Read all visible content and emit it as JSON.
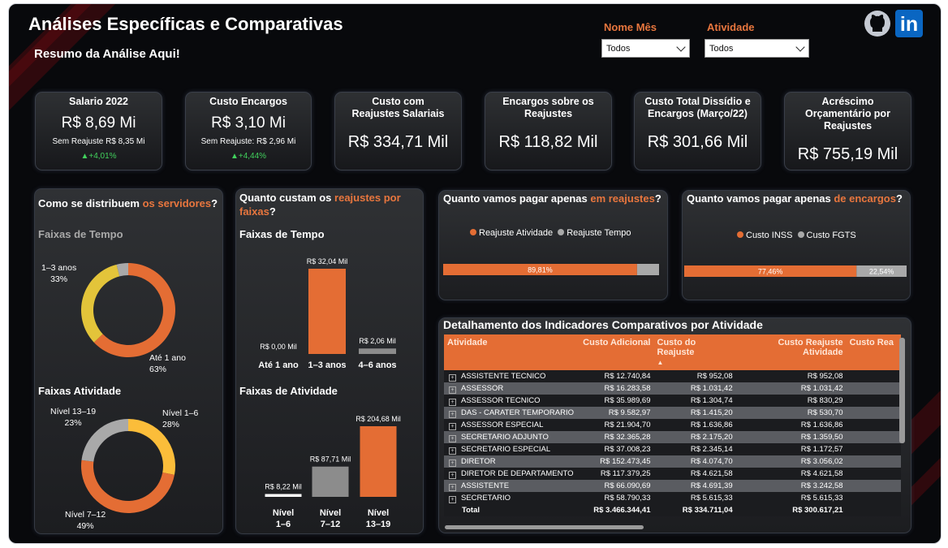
{
  "title": "Análises Específicas e Comparativas",
  "subtitle": "Resumo da Análise Aqui!",
  "filters": [
    {
      "label": "Nome Mês",
      "value": "Todos"
    },
    {
      "label": "Atividade",
      "value": "Todos"
    }
  ],
  "social": {
    "github_icon": "github-icon",
    "linkedin_icon": "linkedin-icon",
    "linkedin_text": "in"
  },
  "colors": {
    "accent": "#e8763e",
    "bar": "#e46d34",
    "grey": "#a9a9a9",
    "positive": "#41d05c"
  },
  "cards": [
    {
      "title": "Salario 2022",
      "value": "R$ 8,69 Mi",
      "sub": "Sem Reajuste R$ 8,35 Mi",
      "delta": "▲+4,01%"
    },
    {
      "title": "Custo Encargos",
      "value": "R$ 3,10 Mi",
      "sub": "Sem Reajuste: R$ 2,96 Mi",
      "delta": "▲+4,44%"
    },
    {
      "title": "Custo com Reajustes Salariais",
      "value": "R$ 334,71 Mil"
    },
    {
      "title": "Encargos sobre os Reajustes",
      "value": "R$ 118,82 Mil"
    },
    {
      "title": "Custo Total Dissídio e Encargos (Março/22)",
      "value": "R$ 301,66 Mil"
    },
    {
      "title": "Acréscimo Orçamentário por Reajustes",
      "value": "R$ 755,19 Mil"
    }
  ],
  "panel1": {
    "head1": "Como se distribuem ",
    "head2": "os servidores",
    "head3": "?",
    "sec1": "Faixas de Tempo",
    "sec2": "Faixas Atividade"
  },
  "panel2": {
    "head1": "Quanto custam os ",
    "head2": "reajustes por",
    "head3": "faixas",
    "head4": "?",
    "sec1": "Faixas de Tempo",
    "sec2": "Faixas de Atividade"
  },
  "panel3": {
    "head1": "Quanto vamos pagar apenas ",
    "head2": "em reajustes",
    "head3": "?",
    "legend": [
      "Reajuste Atividade",
      "Reajuste Tempo"
    ]
  },
  "panel4": {
    "head1": "Quanto vamos pagar apenas ",
    "head2": "de encargos",
    "head3": "?",
    "legend": [
      "Custo INSS",
      "Custo FGTS"
    ]
  },
  "chart_data": [
    {
      "type": "pie",
      "title": "Faixas de Tempo",
      "categories": [
        "Até 1 ano",
        "1–3 anos",
        "4–6 anos"
      ],
      "values": [
        63,
        33,
        4
      ],
      "value_labels": [
        "63%",
        "33%",
        ""
      ],
      "colors": [
        "#e46d34",
        "#e3c43a",
        "#a9a9a9"
      ]
    },
    {
      "type": "pie",
      "title": "Faixas Atividade",
      "categories": [
        "Nível 1–6",
        "Nível 7–12",
        "Nível 13–19"
      ],
      "values": [
        28,
        49,
        23
      ],
      "value_labels": [
        "28%",
        "49%",
        "23%"
      ],
      "colors": [
        "#fbbd3a",
        "#e46d34",
        "#a9a9a9"
      ]
    },
    {
      "type": "bar",
      "title": "Faixas de Tempo",
      "categories": [
        "Até 1 ano",
        "1–3 anos",
        "4–6 anos"
      ],
      "values": [
        0.0,
        32.04,
        2.06
      ],
      "value_labels": [
        "R$ 0,00 Mil",
        "R$ 32,04 Mil",
        "R$ 2,06 Mil"
      ],
      "colors": [
        "#e46d34",
        "#e46d34",
        "#8c8c8c"
      ]
    },
    {
      "type": "bar",
      "title": "Faixas de Atividade",
      "categories": [
        "Nível 1–6",
        "Nível 7–12",
        "Nível 13–19"
      ],
      "values": [
        8.22,
        87.71,
        204.68
      ],
      "value_labels": [
        "R$ 8,22 Mil",
        "R$ 87,71 Mil",
        "R$ 204,68 Mil"
      ],
      "colors": [
        "#ffffff",
        "#8c8c8c",
        "#e46d34"
      ]
    },
    {
      "type": "bar",
      "title": "",
      "categories": [
        "Reajuste Atividade",
        "Reajuste Tempo"
      ],
      "values": [
        89.81,
        10.19
      ],
      "value_labels": [
        "89,81%",
        ""
      ],
      "colors": [
        "#e46d34",
        "#a9a9a9"
      ]
    },
    {
      "type": "bar",
      "title": "",
      "categories": [
        "Custo INSS",
        "Custo FGTS"
      ],
      "values": [
        77.46,
        22.54
      ],
      "value_labels": [
        "77,46%",
        "22,54%"
      ],
      "colors": [
        "#e46d34",
        "#a9a9a9"
      ]
    }
  ],
  "table": {
    "title": "Detalhamento dos Indicadores Comparativos por Atividade",
    "columns": [
      "Atividade",
      "Custo Adicional",
      "Custo do Reajuste",
      "Custo Reajuste Atividade",
      "Custo Rea"
    ],
    "rows": [
      [
        "ASSISTENTE TECNICO",
        "R$ 12.740,84",
        "R$ 952,08",
        "R$ 952,08"
      ],
      [
        "ASSESSOR",
        "R$ 16.283,58",
        "R$ 1.031,42",
        "R$ 1.031,42"
      ],
      [
        "ASSESSOR TECNICO",
        "R$ 35.989,69",
        "R$ 1.304,74",
        "R$ 830,29"
      ],
      [
        "DAS - CARATER TEMPORARIO",
        "R$ 9.582,97",
        "R$ 1.415,20",
        "R$ 530,70"
      ],
      [
        "ASSESSOR ESPECIAL",
        "R$ 21.904,70",
        "R$ 1.636,86",
        "R$ 1.636,86"
      ],
      [
        "SECRETARIO ADJUNTO",
        "R$ 32.365,28",
        "R$ 2.175,20",
        "R$ 1.359,50"
      ],
      [
        "SECRETARIO ESPECIAL",
        "R$ 37.008,23",
        "R$ 2.345,14",
        "R$ 1.172,57"
      ],
      [
        "DIRETOR",
        "R$ 152.473,45",
        "R$ 4.074,70",
        "R$ 3.056,02"
      ],
      [
        "DIRETOR DE DEPARTAMENTO",
        "R$ 117.379,25",
        "R$ 4.621,58",
        "R$ 4.621,58"
      ],
      [
        "ASSISTENTE",
        "R$ 66.090,69",
        "R$ 4.691,39",
        "R$ 3.242,58"
      ],
      [
        "SECRETARIO",
        "R$ 58.790,33",
        "R$ 5.615,33",
        "R$ 5.615,33"
      ]
    ],
    "total": [
      "Total",
      "R$ 3.466.344,41",
      "R$ 334.711,04",
      "R$ 300.617,21"
    ]
  }
}
